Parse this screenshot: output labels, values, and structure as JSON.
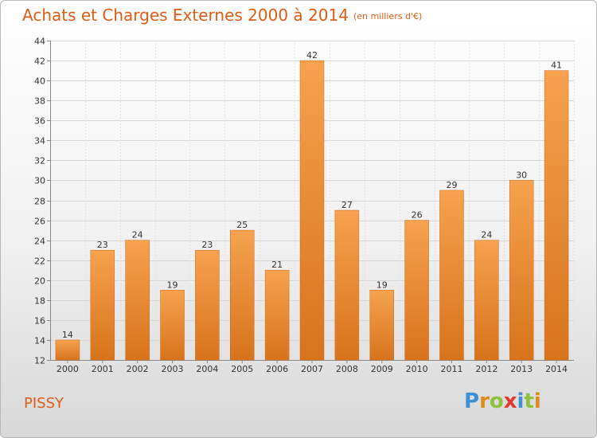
{
  "header": {
    "title": "Achats et Charges Externes 2000 à 2014",
    "subtitle": "(en milliers d'€)"
  },
  "footer": {
    "town": "PISSY"
  },
  "logo": {
    "letters": [
      {
        "ch": "P",
        "color": "#3d8fd6"
      },
      {
        "ch": "r",
        "color": "#e08a1a"
      },
      {
        "ch": "o",
        "color": "#8cc23c"
      },
      {
        "ch": "x",
        "color": "#e03a2a"
      },
      {
        "ch": "i",
        "color": "#3d8fd6"
      },
      {
        "ch": "t",
        "color": "#8cc23c"
      },
      {
        "ch": "i",
        "color": "#e08a1a"
      }
    ]
  },
  "colors": {
    "bar_top": "#f6a24e",
    "bar_bottom": "#d8731c",
    "accent": "#e05c13"
  },
  "chart_data": {
    "type": "bar",
    "title": "Achats et Charges Externes 2000 à 2014",
    "subtitle": "(en milliers d'€)",
    "categories": [
      "2000",
      "2001",
      "2002",
      "2003",
      "2004",
      "2005",
      "2006",
      "2007",
      "2008",
      "2009",
      "2010",
      "2011",
      "2012",
      "2013",
      "2014"
    ],
    "values": [
      14,
      23,
      24,
      19,
      23,
      25,
      21,
      42,
      27,
      19,
      26,
      29,
      24,
      30,
      41
    ],
    "ylim": [
      12,
      44
    ],
    "yticks": [
      12,
      14,
      16,
      18,
      20,
      22,
      24,
      26,
      28,
      30,
      32,
      34,
      36,
      38,
      40,
      42,
      44
    ],
    "grid": true,
    "xlabel": "",
    "ylabel": ""
  }
}
